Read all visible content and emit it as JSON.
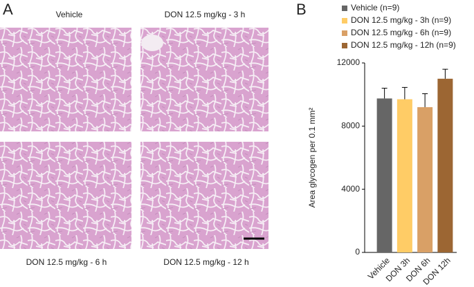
{
  "panel_a": {
    "label": "A",
    "captions": [
      "Vehicle",
      "DON 12.5 mg/kg - 3 h",
      "DON 12.5 mg/kg - 6 h",
      "DON 12.5 mg/kg - 12 h"
    ]
  },
  "chart_data": {
    "type": "bar",
    "panel_label": "B",
    "y_label": "Area glycogen per 0.1 mm²",
    "categories": [
      "Vehicle",
      "DON 3h",
      "DON 6h",
      "DON 12h"
    ],
    "values": [
      9750,
      9700,
      9200,
      11000
    ],
    "errors": [
      650,
      750,
      850,
      600
    ],
    "colors": [
      "#666666",
      "#ffcc66",
      "#d9a066",
      "#9c6633"
    ],
    "legend_labels": [
      "Vehicle (n=9)",
      "DON 12.5 mg/kg - 3h (n=9)",
      "DON 12.5 mg/kg - 6h (n=9)",
      "DON 12.5 mg/kg - 12h (n=9)"
    ],
    "ylim": [
      0,
      12000
    ],
    "yticks": [
      0,
      4000,
      8000,
      12000
    ]
  }
}
